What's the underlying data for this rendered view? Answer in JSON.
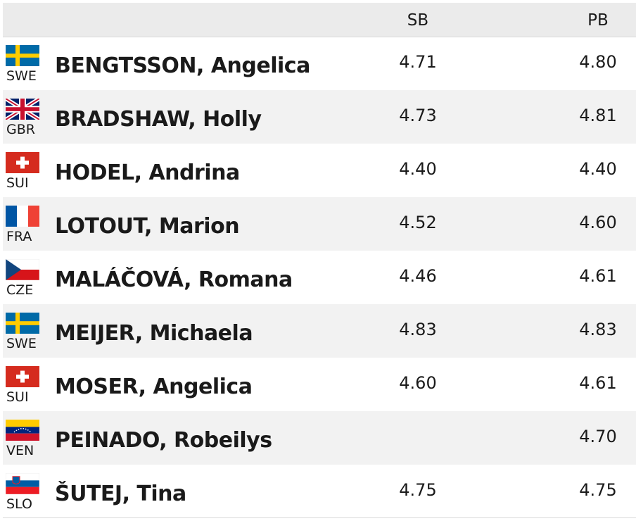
{
  "table": {
    "header": {
      "sb": "SB",
      "pb": "PB"
    },
    "rows": [
      {
        "country": "SWE",
        "name": "BENGTSSON, Angelica",
        "sb": "4.71",
        "pb": "4.80"
      },
      {
        "country": "GBR",
        "name": "BRADSHAW, Holly",
        "sb": "4.73",
        "pb": "4.81"
      },
      {
        "country": "SUI",
        "name": "HODEL, Andrina",
        "sb": "4.40",
        "pb": "4.40"
      },
      {
        "country": "FRA",
        "name": "LOTOUT, Marion",
        "sb": "4.52",
        "pb": "4.60"
      },
      {
        "country": "CZE",
        "name": "MALÁČOVÁ, Romana",
        "sb": "4.46",
        "pb": "4.61"
      },
      {
        "country": "SWE",
        "name": "MEIJER, Michaela",
        "sb": "4.83",
        "pb": "4.83"
      },
      {
        "country": "SUI",
        "name": "MOSER, Angelica",
        "sb": "4.60",
        "pb": "4.61"
      },
      {
        "country": "VEN",
        "name": "PEINADO, Robeilys",
        "sb": null,
        "pb": "4.70"
      },
      {
        "country": "SLO",
        "name": "ŠUTEJ, Tina",
        "sb": "4.75",
        "pb": "4.75"
      }
    ]
  }
}
